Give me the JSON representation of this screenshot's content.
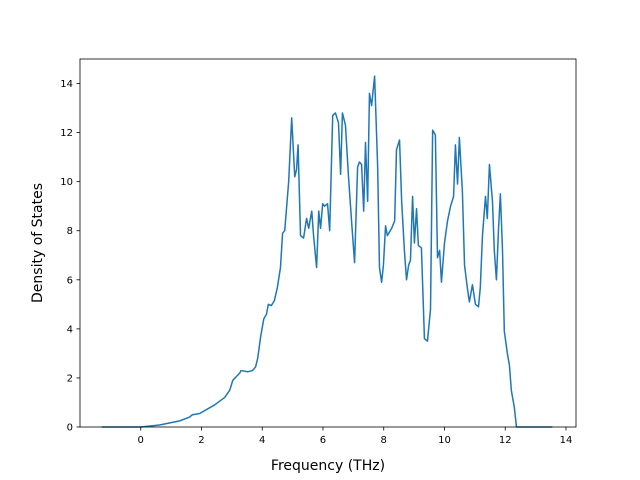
{
  "chart_data": {
    "type": "line",
    "xlabel": "Frequency (THz)",
    "ylabel": "Density of States",
    "color": "#1f77b4",
    "x": [
      -1.28,
      0,
      0.62,
      1.28,
      1.6,
      1.7,
      1.94,
      2.43,
      2.76,
      2.93,
      3.03,
      3.26,
      3.3,
      3.52,
      3.68,
      3.78,
      3.85,
      3.95,
      4.05,
      4.14,
      4.2,
      4.3,
      4.4,
      4.5,
      4.6,
      4.67,
      4.74,
      4.87,
      4.97,
      5.07,
      5.13,
      5.18,
      5.26,
      5.36,
      5.46,
      5.53,
      5.63,
      5.69,
      5.79,
      5.86,
      5.92,
      5.99,
      6.05,
      6.15,
      6.22,
      6.32,
      6.41,
      6.51,
      6.58,
      6.64,
      6.74,
      6.84,
      6.94,
      7.04,
      7.14,
      7.2,
      7.27,
      7.34,
      7.4,
      7.47,
      7.53,
      7.6,
      7.7,
      7.8,
      7.86,
      7.93,
      7.99,
      8.06,
      8.12,
      8.26,
      8.36,
      8.42,
      8.52,
      8.59,
      8.68,
      8.75,
      8.82,
      8.88,
      8.95,
      9.01,
      9.08,
      9.14,
      9.24,
      9.34,
      9.44,
      9.54,
      9.61,
      9.7,
      9.77,
      9.84,
      9.9,
      10.0,
      10.1,
      10.2,
      10.3,
      10.36,
      10.43,
      10.49,
      10.59,
      10.66,
      10.76,
      10.82,
      10.92,
      11.02,
      11.12,
      11.18,
      11.25,
      11.35,
      11.41,
      11.48,
      11.58,
      11.64,
      11.71,
      11.78,
      11.84,
      11.91,
      11.97,
      12.07,
      12.14,
      12.2,
      12.3,
      12.37,
      13.55
    ],
    "values": [
      0,
      0,
      0.08,
      0.25,
      0.4,
      0.5,
      0.55,
      0.9,
      1.2,
      1.5,
      1.9,
      2.2,
      2.3,
      2.25,
      2.3,
      2.45,
      2.8,
      3.7,
      4.4,
      4.6,
      5.0,
      4.95,
      5.15,
      5.7,
      6.5,
      7.9,
      8.0,
      10.0,
      12.6,
      10.2,
      10.5,
      11.5,
      7.8,
      7.7,
      8.5,
      8.1,
      8.8,
      7.8,
      6.5,
      8.8,
      8.1,
      9.1,
      9.0,
      9.1,
      8.0,
      12.7,
      12.8,
      12.4,
      10.3,
      12.8,
      12.3,
      10.2,
      8.4,
      6.7,
      10.6,
      10.8,
      10.7,
      8.8,
      11.6,
      9.2,
      13.6,
      13.1,
      14.3,
      10.6,
      6.5,
      5.9,
      6.6,
      8.2,
      7.8,
      8.1,
      8.4,
      11.3,
      11.7,
      9.2,
      7.2,
      6.0,
      6.6,
      6.8,
      9.4,
      7.5,
      8.9,
      7.4,
      7.3,
      3.6,
      3.5,
      4.8,
      12.1,
      11.9,
      6.9,
      7.2,
      5.9,
      7.5,
      8.4,
      9.0,
      9.4,
      11.5,
      9.9,
      11.8,
      9.6,
      6.6,
      5.6,
      5.1,
      5.8,
      5.0,
      4.9,
      5.7,
      7.8,
      9.4,
      8.5,
      10.7,
      9.2,
      7.2,
      6.0,
      8.1,
      9.5,
      7.2,
      3.9,
      3.0,
      2.5,
      1.5,
      0.8,
      0,
      0
    ],
    "xlim": [
      -2.0,
      14.33
    ],
    "ylim": [
      0,
      15
    ],
    "xticks": [
      0,
      2,
      4,
      6,
      8,
      10,
      12,
      14
    ],
    "yticks": [
      0,
      2,
      4,
      6,
      8,
      10,
      12,
      14
    ]
  }
}
